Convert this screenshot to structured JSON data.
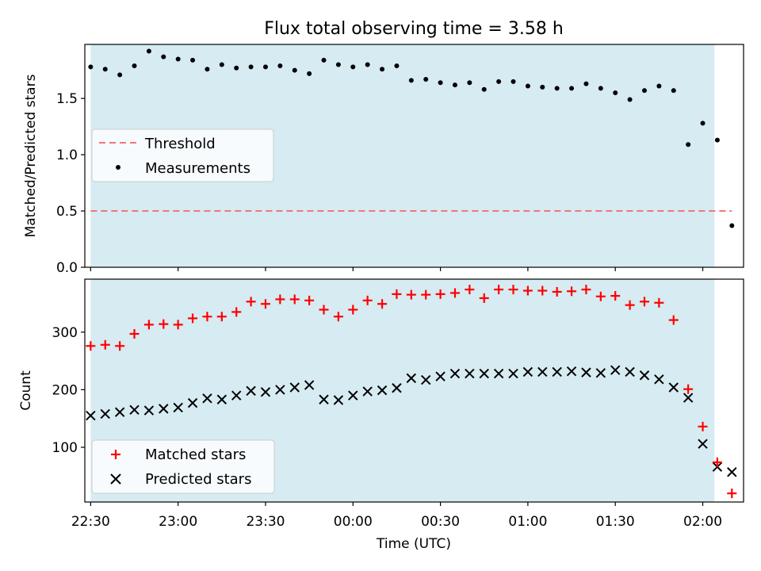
{
  "figure": {
    "title": "Flux total observing time = 3.58 h",
    "xlabel": "Time (UTC)"
  },
  "chart_data": [
    {
      "type": "scatter",
      "panel": "top",
      "ylabel": "Matched/Predicted stars",
      "ylim": [
        0,
        1.98
      ],
      "yticks": [
        0.0,
        0.5,
        1.0,
        1.5
      ],
      "ytick_labels": [
        "0.0",
        "0.5",
        "1.0",
        "1.5"
      ],
      "legend_position": "center-left",
      "threshold": {
        "name": "Threshold",
        "value": 0.5,
        "x_start": "22:30",
        "x_end": "02:10",
        "color": "#f07878"
      },
      "series": [
        {
          "name": "Measurements",
          "color": "#000000",
          "x": [
            "22:30",
            "22:35",
            "22:40",
            "22:45",
            "22:50",
            "22:55",
            "23:00",
            "23:05",
            "23:10",
            "23:15",
            "23:20",
            "23:25",
            "23:30",
            "23:35",
            "23:40",
            "23:45",
            "23:50",
            "23:55",
            "00:00",
            "00:05",
            "00:10",
            "00:15",
            "00:20",
            "00:25",
            "00:30",
            "00:35",
            "00:40",
            "00:45",
            "00:50",
            "00:55",
            "01:00",
            "01:05",
            "01:10",
            "01:15",
            "01:20",
            "01:25",
            "01:30",
            "01:35",
            "01:40",
            "01:45",
            "01:50",
            "01:55",
            "02:00",
            "02:05",
            "02:10"
          ],
          "y": [
            1.78,
            1.76,
            1.71,
            1.79,
            1.92,
            1.87,
            1.85,
            1.84,
            1.76,
            1.8,
            1.77,
            1.78,
            1.78,
            1.79,
            1.75,
            1.72,
            1.84,
            1.8,
            1.78,
            1.8,
            1.76,
            1.79,
            1.66,
            1.67,
            1.64,
            1.62,
            1.64,
            1.58,
            1.65,
            1.65,
            1.61,
            1.6,
            1.59,
            1.59,
            1.63,
            1.59,
            1.55,
            1.49,
            1.57,
            1.61,
            1.57,
            1.09,
            1.28,
            1.13,
            0.37
          ]
        }
      ]
    },
    {
      "type": "scatter",
      "panel": "bottom",
      "ylabel": "Count",
      "ylim": [
        5,
        392
      ],
      "yticks": [
        100,
        200,
        300
      ],
      "ytick_labels": [
        "100",
        "200",
        "300"
      ],
      "legend_position": "lower-left",
      "x": [
        "22:30",
        "22:35",
        "22:40",
        "22:45",
        "22:50",
        "22:55",
        "23:00",
        "23:05",
        "23:10",
        "23:15",
        "23:20",
        "23:25",
        "23:30",
        "23:35",
        "23:40",
        "23:45",
        "23:50",
        "23:55",
        "00:00",
        "00:05",
        "00:10",
        "00:15",
        "00:20",
        "00:25",
        "00:30",
        "00:35",
        "00:40",
        "00:45",
        "00:50",
        "00:55",
        "01:00",
        "01:05",
        "01:10",
        "01:15",
        "01:20",
        "01:25",
        "01:30",
        "01:35",
        "01:40",
        "01:45",
        "01:50",
        "01:55",
        "02:00",
        "02:05",
        "02:10"
      ],
      "series": [
        {
          "name": "Matched stars",
          "marker": "+",
          "color": "#ff0000",
          "values": [
            276,
            278,
            276,
            297,
            313,
            314,
            313,
            324,
            327,
            327,
            335,
            353,
            349,
            357,
            357,
            355,
            339,
            327,
            339,
            355,
            349,
            366,
            365,
            365,
            366,
            368,
            374,
            359,
            374,
            374,
            372,
            372,
            370,
            371,
            374,
            362,
            363,
            347,
            353,
            351,
            321,
            201,
            136,
            74,
            20
          ]
        },
        {
          "name": "Predicted stars",
          "marker": "x",
          "color": "#000000",
          "values": [
            155,
            158,
            161,
            165,
            164,
            167,
            169,
            177,
            185,
            183,
            190,
            198,
            196,
            200,
            204,
            208,
            183,
            182,
            190,
            197,
            199,
            203,
            220,
            217,
            223,
            228,
            228,
            228,
            228,
            228,
            231,
            231,
            231,
            232,
            230,
            229,
            234,
            231,
            225,
            218,
            204,
            186,
            106,
            66,
            57
          ]
        }
      ]
    }
  ],
  "shared_x": {
    "type": "time",
    "xlim": [
      "22:28",
      "02:14"
    ],
    "span": {
      "start": "22:30",
      "end": "02:04",
      "color": "#add8e6",
      "alpha": 0.5
    },
    "ticks": [
      "22:30",
      "23:00",
      "23:30",
      "00:00",
      "00:30",
      "01:00",
      "01:30",
      "02:00"
    ]
  },
  "legends": {
    "top": [
      "Threshold",
      "Measurements"
    ],
    "bottom": [
      "Matched stars",
      "Predicted stars"
    ]
  }
}
